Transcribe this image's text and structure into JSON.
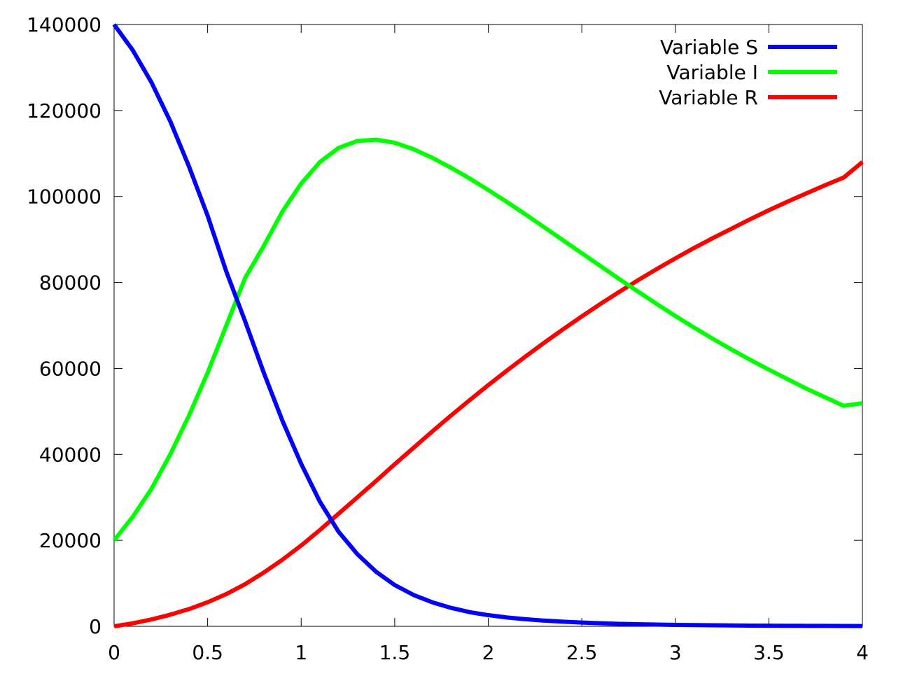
{
  "chart_data": {
    "type": "line",
    "title": "",
    "xlabel": "",
    "ylabel": "",
    "xlim": [
      0,
      4
    ],
    "ylim": [
      0,
      140000
    ],
    "x_ticks": [
      0,
      0.5,
      1,
      1.5,
      2,
      2.5,
      3,
      3.5,
      4
    ],
    "x_tick_labels": [
      "0",
      "0.5",
      "1",
      "1.5",
      "2",
      "2.5",
      "3",
      "3.5",
      "4"
    ],
    "y_ticks": [
      0,
      20000,
      40000,
      60000,
      80000,
      100000,
      120000,
      140000
    ],
    "y_tick_labels": [
      "0",
      "20000",
      "40000",
      "60000",
      "80000",
      "100000",
      "120000",
      "140000"
    ],
    "grid": false,
    "legend_position": "top-right",
    "x": [
      0,
      0.1,
      0.2,
      0.3,
      0.4,
      0.5,
      0.6,
      0.7,
      0.8,
      0.9,
      1.0,
      1.1,
      1.2,
      1.3,
      1.4,
      1.5,
      1.6,
      1.7,
      1.8,
      1.9,
      2.0,
      2.1,
      2.2,
      2.3,
      2.4,
      2.5,
      2.6,
      2.7,
      2.8,
      2.9,
      3.0,
      3.1,
      3.2,
      3.3,
      3.4,
      3.5,
      3.6,
      3.7,
      3.8,
      3.9,
      4.0
    ],
    "series": [
      {
        "name": "Variable S",
        "color": "#0000ff",
        "values": [
          140000,
          134000,
          126500,
          117500,
          107000,
          95500,
          82500,
          71000,
          59000,
          47800,
          37800,
          29000,
          22000,
          16800,
          12700,
          9600,
          7300,
          5600,
          4300,
          3300,
          2600,
          2050,
          1650,
          1320,
          1070,
          870,
          710,
          580,
          480,
          400,
          330,
          280,
          240,
          200,
          170,
          150,
          130,
          110,
          95,
          80,
          70
        ]
      },
      {
        "name": "Variable I",
        "color": "#00ff00",
        "values": [
          20000,
          25500,
          32000,
          40000,
          49000,
          59000,
          70000,
          81000,
          88500,
          96500,
          103000,
          108000,
          111300,
          112900,
          113200,
          112500,
          111000,
          109000,
          106700,
          104200,
          101500,
          98700,
          95800,
          92800,
          89800,
          86800,
          83800,
          80800,
          77900,
          75000,
          72200,
          69500,
          66900,
          64400,
          62000,
          59700,
          57500,
          55300,
          53300,
          51300,
          51900
        ]
      },
      {
        "name": "Variable R",
        "color": "#ff0000",
        "values": [
          0,
          700,
          1600,
          2700,
          4000,
          5600,
          7500,
          9800,
          12500,
          15500,
          18800,
          22400,
          26200,
          30000,
          33800,
          37700,
          41500,
          45300,
          49000,
          52600,
          56100,
          59500,
          62800,
          66000,
          69100,
          72100,
          75000,
          77800,
          80500,
          83100,
          85600,
          88000,
          90300,
          92500,
          94700,
          96800,
          98800,
          100700,
          102600,
          104400,
          108000
        ]
      }
    ]
  }
}
